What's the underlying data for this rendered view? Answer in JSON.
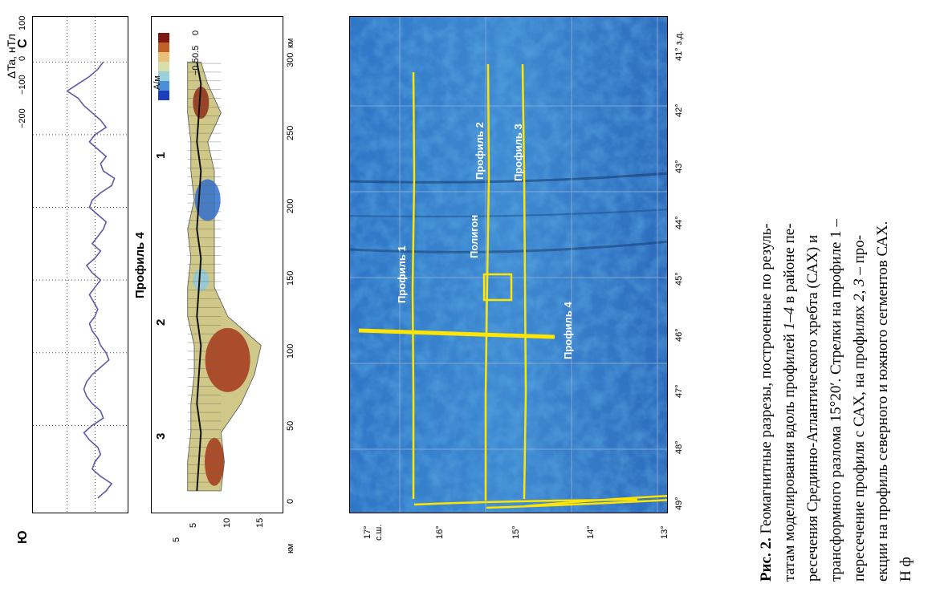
{
  "figure": {
    "curve_panel": {
      "title": "Профиль 4",
      "south": "Ю",
      "north": "С",
      "ylabel": "ΔTa, нТл",
      "yticks": [
        "100",
        "0",
        "−100",
        "−200"
      ]
    },
    "section_panel": {
      "colorbar_unit": "А/м",
      "colorbar_ticks": [
        "0.5",
        "0",
        "−0.5"
      ],
      "xunit": "км",
      "yunit": "км",
      "yticks": [
        "5",
        "10",
        "15"
      ],
      "xticks": [
        "0",
        "50",
        "100",
        "150",
        "200",
        "250",
        "300"
      ],
      "markers": [
        "3",
        "2",
        "1"
      ]
    },
    "map": {
      "lat_labels": [
        "17°",
        "16°",
        "15°",
        "14°",
        "13°"
      ],
      "lat_suffix": "с.ш.",
      "lon_labels": [
        "49°",
        "48°",
        "47°",
        "46°",
        "45°",
        "44°",
        "43°",
        "42°",
        "41° з.д."
      ],
      "profile_labels": {
        "p1": "Профиль 1",
        "p2": "Профиль 2",
        "p3": "Профиль 3",
        "p4": "Профиль 4",
        "poly": "Полигон"
      }
    }
  },
  "chart_data": {
    "type": "line",
    "title": "Профиль 4",
    "xlabel": "км",
    "ylabel": "ΔTa, нТл",
    "ylim": [
      -200,
      100
    ],
    "xlim": [
      0,
      320
    ],
    "series": [
      {
        "name": "ΔTa",
        "x": [
          0,
          5,
          10,
          15,
          20,
          25,
          30,
          35,
          40,
          45,
          50,
          55,
          60,
          65,
          70,
          75,
          80,
          85,
          90,
          95,
          100,
          105,
          110,
          115,
          120,
          125,
          130,
          135,
          140,
          145,
          150,
          155,
          160,
          165,
          170,
          175,
          180,
          185,
          190,
          195,
          200,
          205,
          210,
          215,
          220,
          225,
          230,
          235,
          240,
          245,
          250,
          255,
          260,
          265,
          270,
          275,
          280,
          285,
          290,
          295,
          300
        ],
        "values": [
          10,
          40,
          60,
          20,
          -10,
          0,
          20,
          10,
          -20,
          -40,
          -10,
          30,
          20,
          -10,
          -30,
          -40,
          -30,
          -10,
          20,
          50,
          40,
          20,
          10,
          -10,
          -20,
          0,
          10,
          -5,
          -20,
          0,
          20,
          -10,
          -30,
          0,
          20,
          -10,
          10,
          30,
          40,
          10,
          -20,
          -10,
          20,
          60,
          70,
          30,
          20,
          40,
          10,
          -20,
          0,
          40,
          20,
          -10,
          -40,
          -60,
          -100,
          -60,
          -20,
          10,
          30
        ]
      }
    ]
  },
  "caption": {
    "label": "Рис. 2.",
    "line1": " Геомагнитные разрезы, построенные по резуль-",
    "line2a": "татам моделирования вдоль профилей ",
    "line2i": "1–4",
    "line2b": " в районе пе-",
    "line3": "ресечения Срединно-Атлантического хребта (САХ) и",
    "line4": "трансформного разлома 15°20′. Стрелки на профиле 1 –",
    "line5a": "пересечение профиля с САХ, на профилях ",
    "line5i": "2, 3",
    "line5b": " – про-",
    "line6": "екции на профиль северного и южного сегментов САХ.",
    "line7": "Н                    ф"
  }
}
